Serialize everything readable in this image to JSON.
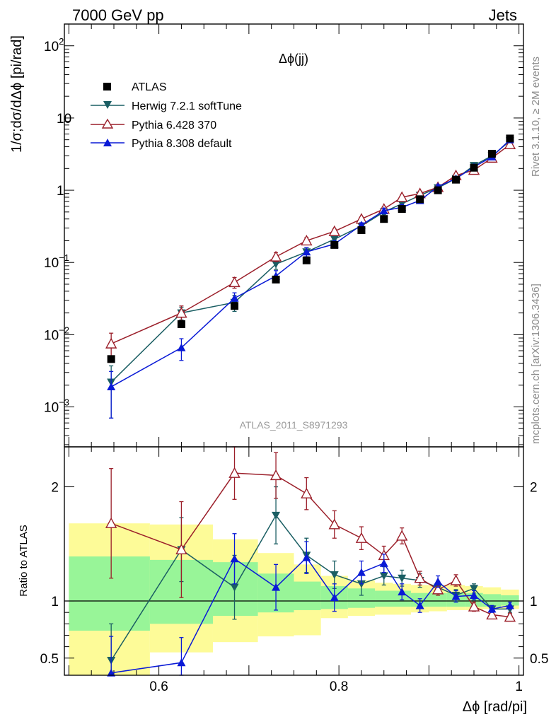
{
  "header": {
    "left": "7000 GeV pp",
    "right": "Jets"
  },
  "side_labels": {
    "right_top": "Rivet 3.1.10, ≥ 2M events",
    "right_bottom": "mcplots.cern.ch [arXiv:1306.3436]"
  },
  "colors": {
    "data": "#000000",
    "herwig": "#1a5e63",
    "pythia6": "#9b1f2a",
    "pythia8": "#0a1ad6",
    "band_inner": "#98f598",
    "band_outer": "#fdfb98"
  },
  "chart_data": [
    {
      "type": "scatter",
      "panel": "main",
      "title": "Δϕ(jj)",
      "ylabel": "1/σ;dσ/dΔϕ [pi/rad]",
      "watermark": "ATLAS_2011_S8971293",
      "xlim": [
        0.495,
        1.005
      ],
      "ylim": [
        0.00028,
        200
      ],
      "ylog": true,
      "yticks": [
        {
          "v": 0.001,
          "base": "10",
          "exp": "−3"
        },
        {
          "v": 0.01,
          "base": "10",
          "exp": "−2"
        },
        {
          "v": 0.1,
          "base": "10",
          "exp": "−1"
        },
        {
          "v": 1,
          "base": "1",
          "exp": ""
        },
        {
          "v": 10,
          "base": "10",
          "exp": ""
        },
        {
          "v": 100,
          "base": "10",
          "exp": "2"
        }
      ],
      "series": [
        {
          "name": "ATLAS",
          "key": "data",
          "marker": "square",
          "x": [
            0.547,
            0.625,
            0.684,
            0.73,
            0.764,
            0.795,
            0.825,
            0.85,
            0.87,
            0.89,
            0.91,
            0.93,
            0.95,
            0.97,
            0.99
          ],
          "y": [
            0.0046,
            0.014,
            0.025,
            0.058,
            0.107,
            0.175,
            0.28,
            0.4,
            0.55,
            0.75,
            1.0,
            1.4,
            2.05,
            3.2,
            5.2
          ]
        },
        {
          "name": "Herwig 7.2.1 softTune",
          "key": "herwig",
          "marker": "triangle-down",
          "x": [
            0.547,
            0.625,
            0.684,
            0.73,
            0.764,
            0.795,
            0.825,
            0.85,
            0.87,
            0.89,
            0.91,
            0.93,
            0.95,
            0.97,
            0.99
          ],
          "y": [
            0.0022,
            0.02,
            0.028,
            0.095,
            0.14,
            0.21,
            0.32,
            0.5,
            0.65,
            0.85,
            1.08,
            1.45,
            2.2,
            3.0,
            4.8
          ],
          "yerr": [
            0.0015,
            0.004,
            0.007,
            0.015,
            0.02,
            0.02,
            0.025,
            0.04,
            0.05,
            0.06,
            0.07,
            0.08,
            0.1,
            0.15,
            0.2
          ]
        },
        {
          "name": "Pythia 6.428 370",
          "key": "pythia6",
          "marker": "triangle-open",
          "x": [
            0.547,
            0.625,
            0.684,
            0.73,
            0.764,
            0.795,
            0.825,
            0.85,
            0.87,
            0.89,
            0.91,
            0.93,
            0.95,
            0.97,
            0.99
          ],
          "y": [
            0.0075,
            0.02,
            0.053,
            0.12,
            0.2,
            0.27,
            0.4,
            0.55,
            0.8,
            0.9,
            1.1,
            1.6,
            1.9,
            2.8,
            4.3
          ],
          "yerr": [
            0.003,
            0.005,
            0.009,
            0.017,
            0.02,
            0.02,
            0.025,
            0.04,
            0.05,
            0.06,
            0.07,
            0.09,
            0.1,
            0.15,
            0.2
          ]
        },
        {
          "name": "Pythia 8.308 default",
          "key": "pythia8",
          "marker": "triangle-up",
          "x": [
            0.547,
            0.625,
            0.684,
            0.73,
            0.764,
            0.795,
            0.825,
            0.85,
            0.87,
            0.89,
            0.91,
            0.93,
            0.95,
            0.97,
            0.99
          ],
          "y": [
            0.0019,
            0.0066,
            0.032,
            0.065,
            0.14,
            0.18,
            0.33,
            0.52,
            0.58,
            0.72,
            1.12,
            1.45,
            2.1,
            2.9,
            5.0
          ],
          "yerr": [
            0.0012,
            0.0022,
            0.006,
            0.012,
            0.02,
            0.02,
            0.025,
            0.04,
            0.05,
            0.06,
            0.07,
            0.08,
            0.1,
            0.15,
            0.2
          ]
        }
      ]
    },
    {
      "type": "line",
      "panel": "ratio",
      "ylabel": "Ratio to ATLAS",
      "xlabel": "Δϕ [rad/pi]",
      "xlim": [
        0.495,
        1.005
      ],
      "ylim": [
        0.35,
        2.35
      ],
      "xticks": [
        0.6,
        0.8,
        1
      ],
      "xticklabels": [
        "0.6",
        "0.8",
        "1"
      ],
      "yticks": [
        0.5,
        1,
        2
      ],
      "yticklabels": [
        "0.5",
        "1",
        "2"
      ],
      "bands": {
        "edges": [
          0.5,
          0.59,
          0.66,
          0.71,
          0.75,
          0.78,
          0.81,
          0.84,
          0.86,
          0.88,
          0.9,
          0.92,
          0.94,
          0.96,
          0.98,
          1.0
        ],
        "inner_lo": [
          0.74,
          0.8,
          0.87,
          0.9,
          0.92,
          0.93,
          0.94,
          0.95,
          0.95,
          0.95,
          0.95,
          0.95,
          0.95,
          0.95,
          0.96
        ],
        "inner_hi": [
          1.39,
          1.36,
          1.34,
          1.24,
          1.17,
          1.13,
          1.11,
          1.09,
          1.09,
          1.07,
          1.07,
          1.07,
          1.07,
          1.06,
          1.05
        ],
        "outer_lo": [
          0.35,
          0.55,
          0.64,
          0.69,
          0.7,
          0.85,
          0.87,
          0.88,
          0.88,
          0.9,
          0.91,
          0.92,
          0.92,
          0.93,
          0.93
        ],
        "outer_hi": [
          1.68,
          1.67,
          1.54,
          1.42,
          1.32,
          1.22,
          1.18,
          1.16,
          1.15,
          1.14,
          1.14,
          1.14,
          1.13,
          1.12,
          1.1
        ]
      },
      "series": [
        {
          "name": "Herwig 7.2.1 softTune",
          "key": "herwig",
          "marker": "triangle-down",
          "x": [
            0.547,
            0.625,
            0.684,
            0.73,
            0.764,
            0.795,
            0.825,
            0.85,
            0.87,
            0.89,
            0.91,
            0.93,
            0.95,
            0.97,
            0.99
          ],
          "y": [
            0.48,
            1.45,
            1.12,
            1.75,
            1.4,
            1.23,
            1.15,
            1.22,
            1.2,
            1.18,
            1.12,
            1.05,
            1.11,
            0.93,
            0.93
          ],
          "yerr": [
            0.32,
            0.28,
            0.28,
            0.25,
            0.15,
            0.12,
            0.1,
            0.08,
            0.07,
            0.06,
            0.05,
            0.05,
            0.04,
            0.03,
            0.03
          ]
        },
        {
          "name": "Pythia 6.428 370",
          "key": "pythia6",
          "marker": "triangle-open",
          "x": [
            0.547,
            0.625,
            0.684,
            0.73,
            0.764,
            0.795,
            0.825,
            0.85,
            0.87,
            0.89,
            0.91,
            0.93,
            0.95,
            0.97,
            0.99
          ],
          "y": [
            1.68,
            1.45,
            2.12,
            2.1,
            1.94,
            1.67,
            1.55,
            1.4,
            1.57,
            1.2,
            1.1,
            1.18,
            0.95,
            0.88,
            0.86
          ],
          "yerr": [
            0.48,
            0.42,
            0.23,
            0.2,
            0.14,
            0.12,
            0.1,
            0.08,
            0.07,
            0.06,
            0.05,
            0.05,
            0.04,
            0.03,
            0.03
          ]
        },
        {
          "name": "Pythia 8.308 default",
          "key": "pythia8",
          "marker": "triangle-up",
          "x": [
            0.547,
            0.625,
            0.684,
            0.73,
            0.764,
            0.795,
            0.825,
            0.85,
            0.87,
            0.89,
            0.91,
            0.93,
            0.95,
            0.97,
            0.99
          ],
          "y": [
            0.37,
            0.46,
            1.37,
            1.12,
            1.38,
            1.03,
            1.25,
            1.33,
            1.08,
            0.96,
            1.17,
            1.04,
            1.05,
            0.93,
            0.96
          ],
          "yerr": [
            0.32,
            0.22,
            0.22,
            0.2,
            0.14,
            0.12,
            0.1,
            0.08,
            0.07,
            0.06,
            0.05,
            0.05,
            0.04,
            0.03,
            0.03
          ]
        }
      ]
    }
  ]
}
